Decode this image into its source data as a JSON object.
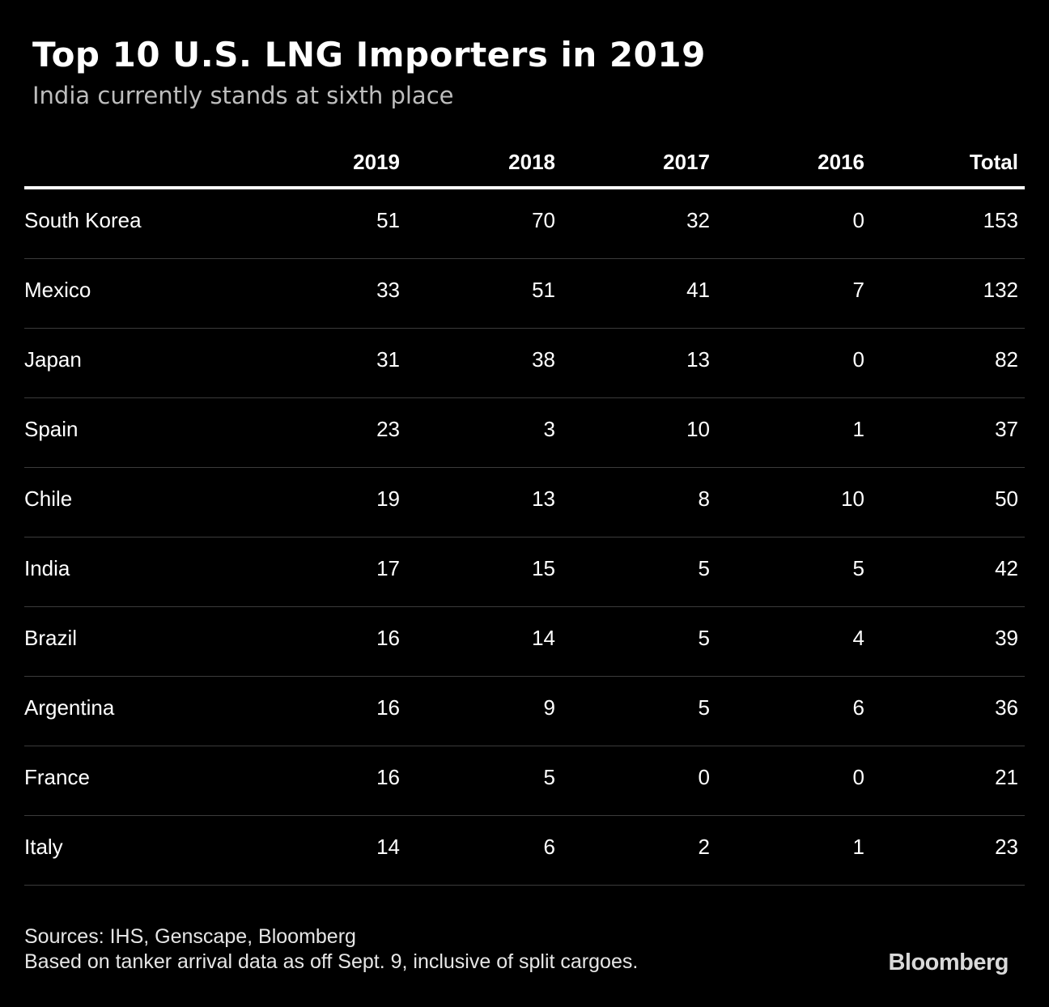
{
  "chart_data": {
    "type": "table",
    "title": "Top 10 U.S. LNG Importers in 2019",
    "subtitle": "India currently stands at sixth place",
    "columns": [
      "",
      "2019",
      "2018",
      "2017",
      "2016",
      "Total"
    ],
    "rows": [
      {
        "country": "South Korea",
        "values": [
          "51",
          "70",
          "32",
          "0",
          "153"
        ]
      },
      {
        "country": "Mexico",
        "values": [
          "33",
          "51",
          "41",
          "7",
          "132"
        ]
      },
      {
        "country": "Japan",
        "values": [
          "31",
          "38",
          "13",
          "0",
          "82"
        ]
      },
      {
        "country": "Spain",
        "values": [
          "23",
          "3",
          "10",
          "1",
          "37"
        ]
      },
      {
        "country": "Chile",
        "values": [
          "19",
          "13",
          "8",
          "10",
          "50"
        ]
      },
      {
        "country": "India",
        "values": [
          "17",
          "15",
          "5",
          "5",
          "42"
        ]
      },
      {
        "country": "Brazil",
        "values": [
          "16",
          "14",
          "5",
          "4",
          "39"
        ]
      },
      {
        "country": "Argentina",
        "values": [
          "16",
          "9",
          "5",
          "6",
          "36"
        ]
      },
      {
        "country": "France",
        "values": [
          "16",
          "5",
          "0",
          "0",
          "21"
        ]
      },
      {
        "country": "Italy",
        "values": [
          "14",
          "6",
          "2",
          "1",
          "23"
        ]
      }
    ]
  },
  "footer": {
    "sources": "Sources: IHS, Genscape, Bloomberg",
    "note": "Based on tanker arrival data as off Sept. 9, inclusive of split cargoes."
  },
  "logo": "Bloomberg",
  "colors": {
    "background": "#000000",
    "text": "#ffffff",
    "subtitle": "#bdbdbd",
    "rule": "#ffffff",
    "row_divider": "#3b3b3b"
  }
}
